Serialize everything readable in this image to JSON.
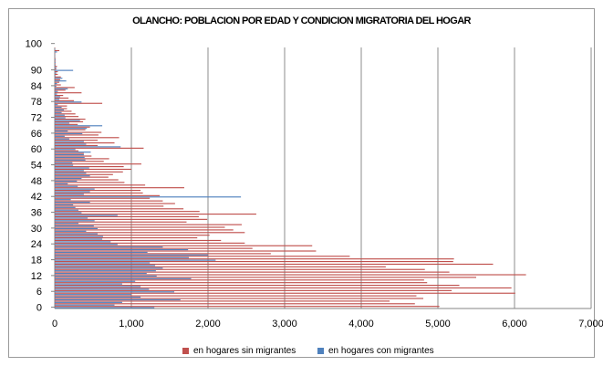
{
  "chart_data": {
    "type": "bar",
    "orientation": "horizontal",
    "title": "OLANCHO: POBLACION POR EDAD Y CONDICION MIGRATORIA DEL HOGAR",
    "xlim": [
      0,
      7000
    ],
    "x_ticks": [
      "0",
      "1,000",
      "2,000",
      "3,000",
      "4,000",
      "5,000",
      "6,000",
      "7,000"
    ],
    "y_tick_labels": [
      "0",
      "6",
      "12",
      "18",
      "24",
      "30",
      "36",
      "42",
      "48",
      "54",
      "60",
      "66",
      "72",
      "78",
      "84",
      "90",
      "100"
    ],
    "grid": "vertical",
    "legend_position": "bottom",
    "categories_note": "age 0 to 98",
    "series": [
      {
        "name": "en hogares sin migrantes",
        "color": "#c0504d",
        "values": [
          5020,
          4700,
          4370,
          4810,
          4720,
          6010,
          5180,
          5960,
          5280,
          4860,
          4820,
          5500,
          6150,
          5150,
          4830,
          4320,
          5720,
          5200,
          5210,
          3850,
          2820,
          3410,
          2580,
          3360,
          2480,
          2170,
          1860,
          2020,
          2480,
          2330,
          2220,
          2440,
          1720,
          1990,
          1880,
          2630,
          1890,
          1680,
          1420,
          1570,
          1410,
          1240,
          1370,
          1150,
          1120,
          1690,
          1180,
          910,
          830,
          700,
          760,
          890,
          1000,
          900,
          1130,
          640,
          710,
          480,
          380,
          310,
          1160,
          560,
          780,
          560,
          840,
          570,
          610,
          400,
          460,
          300,
          370,
          400,
          310,
          270,
          220,
          160,
          160,
          620,
          250,
          180,
          110,
          350,
          140,
          260,
          80,
          60,
          70,
          80,
          40,
          40,
          20,
          30,
          10,
          10,
          10,
          5,
          5,
          60,
          5
        ]
      },
      {
        "name": "en hogares con migrantes",
        "color": "#4f81bd",
        "values": [
          1300,
          780,
          880,
          1640,
          1120,
          1000,
          1560,
          1230,
          1120,
          880,
          1050,
          1780,
          1330,
          1200,
          1320,
          1410,
          1310,
          1240,
          2100,
          1750,
          2000,
          1210,
          1740,
          1410,
          820,
          730,
          620,
          630,
          560,
          410,
          560,
          510,
          310,
          520,
          430,
          820,
          350,
          310,
          270,
          240,
          460,
          210,
          2430,
          380,
          460,
          520,
          300,
          170,
          290,
          350,
          460,
          410,
          380,
          450,
          240,
          230,
          400,
          390,
          380,
          470,
          270,
          860,
          410,
          380,
          190,
          130,
          360,
          170,
          420,
          620,
          190,
          330,
          140,
          130,
          90,
          120,
          90,
          40,
          350,
          60,
          70,
          30,
          40,
          170,
          20,
          30,
          150,
          100,
          10,
          20,
          240,
          20,
          10,
          10,
          10,
          5,
          5,
          30,
          5
        ]
      }
    ]
  }
}
